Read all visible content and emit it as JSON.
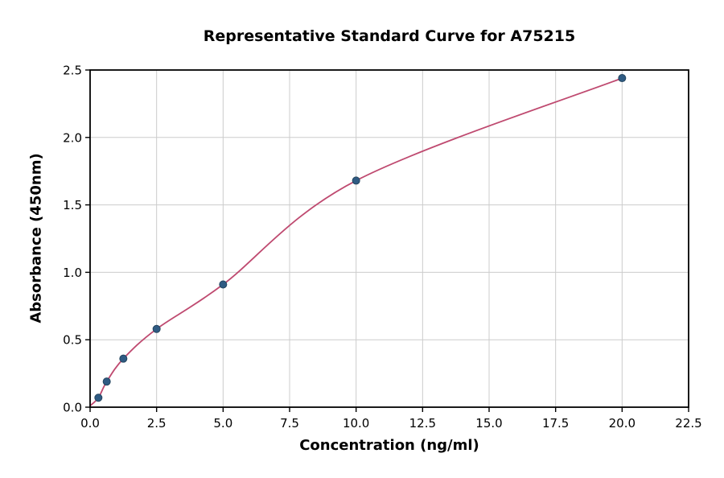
{
  "chart_data": {
    "type": "scatter",
    "title": "Representative Standard Curve for A75215",
    "xlabel": "Concentration (ng/ml)",
    "ylabel": "Absorbance (450nm)",
    "xlim": [
      0,
      22.5
    ],
    "ylim": [
      0,
      2.5
    ],
    "grid": true,
    "legend": "none",
    "x_ticks": [
      0.0,
      2.5,
      5.0,
      7.5,
      10.0,
      12.5,
      15.0,
      17.5,
      20.0,
      22.5
    ],
    "x_tick_labels": [
      "0.0",
      "2.5",
      "5.0",
      "7.5",
      "10.0",
      "12.5",
      "15.0",
      "17.5",
      "20.0",
      "22.5"
    ],
    "y_ticks": [
      0.0,
      0.5,
      1.0,
      1.5,
      2.0,
      2.5
    ],
    "y_tick_labels": [
      "0.0",
      "0.5",
      "1.0",
      "1.5",
      "2.0",
      "2.5"
    ],
    "points": {
      "x": [
        0.3125,
        0.625,
        1.25,
        2.5,
        5.0,
        10.0,
        20.0
      ],
      "y": [
        0.07,
        0.19,
        0.36,
        0.58,
        0.91,
        1.68,
        2.44
      ]
    },
    "curve": {
      "description": "fitted standard curve from origin through data points",
      "start_anchor": [
        0,
        0.01
      ]
    },
    "colors": {
      "curve": "#bf4a70",
      "points_fill": "#2f5b83",
      "points_edge": "#24455f",
      "grid": "#cccccc",
      "axis": "#000000",
      "background": "#ffffff"
    }
  }
}
